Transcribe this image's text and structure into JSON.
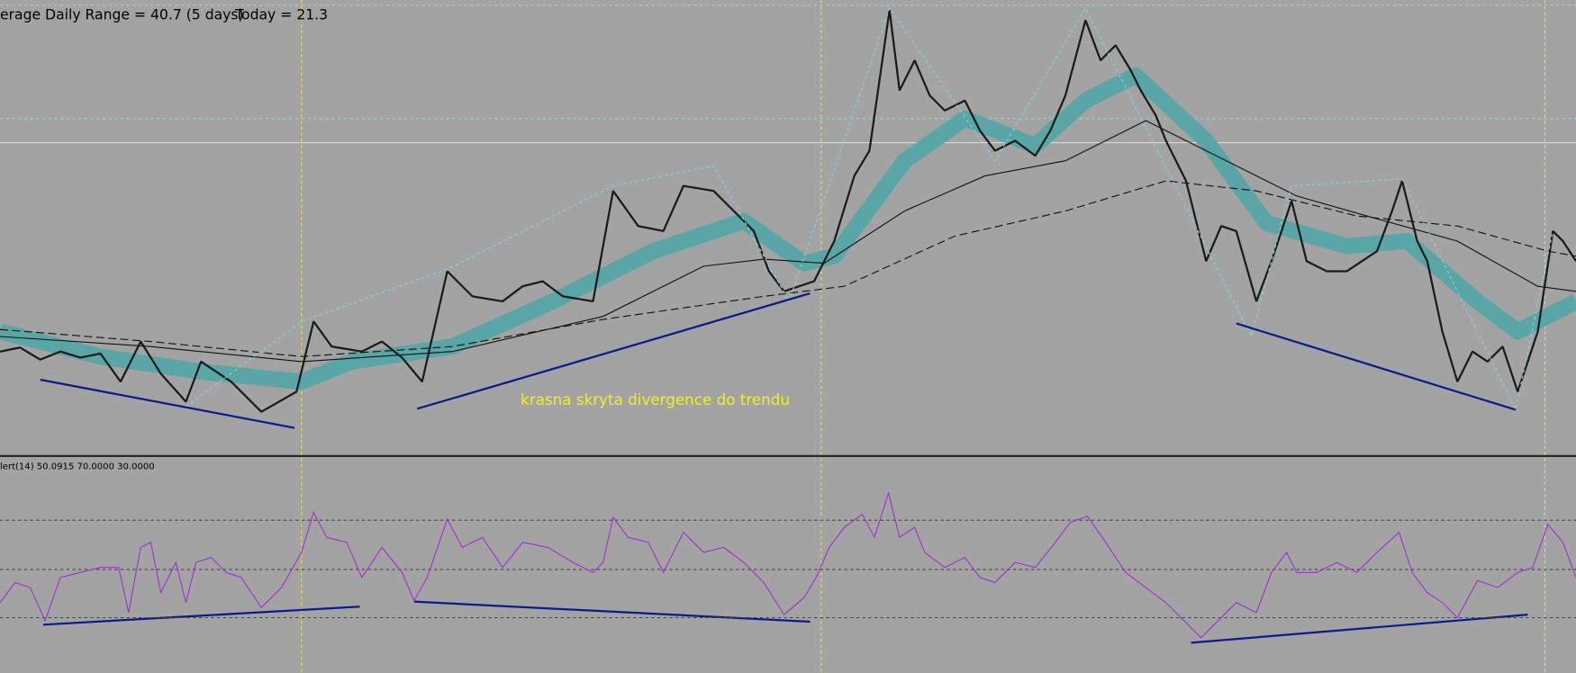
{
  "header": {
    "range_text": "erage Daily Range = 40.7 (5 days)",
    "today_text": "Today = 21.3"
  },
  "annotation": "krasna skryta divergence do trendu",
  "indicator": {
    "label": "lert(14) 50.0915 70.0000 30.0000"
  }
}
